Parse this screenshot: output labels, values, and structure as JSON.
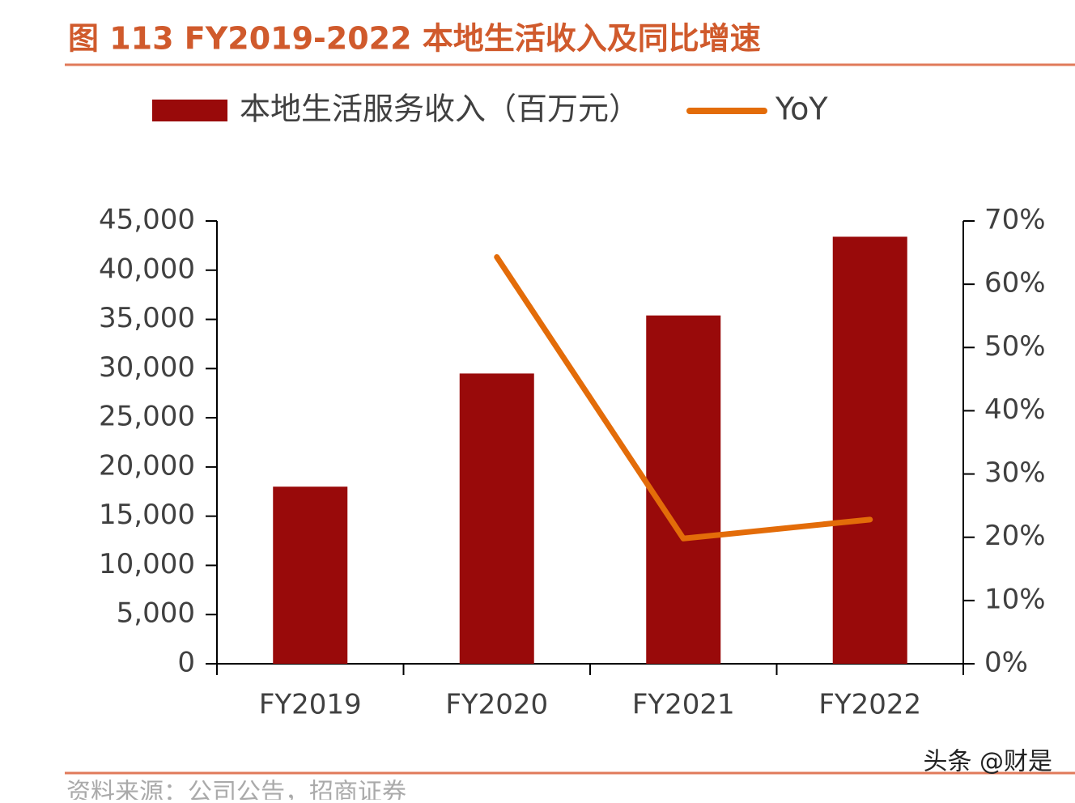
{
  "chart_data": {
    "type": "bar_line",
    "title": "图 113 FY2019-2022 本地生活收入及同比增速",
    "source": "资料来源：公司公告，招商证券",
    "watermark": "头条 @财是",
    "categories": [
      "FY2019",
      "FY2020",
      "FY2021",
      "FY2022"
    ],
    "series": [
      {
        "name": "本地生活服务收入（百万元）",
        "type": "bar",
        "color": "#990a0a",
        "values": [
          18000,
          29500,
          35400,
          43400
        ]
      },
      {
        "name": "YoY",
        "type": "line",
        "axis": "y2",
        "color": "#e36c09",
        "values": [
          null,
          64.3,
          19.8,
          22.8
        ]
      }
    ],
    "ylim": [
      0,
      45000
    ],
    "yticks": [
      0,
      {
        "value": 5000,
        "label": "5,000"
      },
      {
        "value": 10000,
        "label": "10,000"
      },
      {
        "value": 15000,
        "label": "15,000"
      },
      {
        "value": 20000,
        "label": "20,000"
      },
      {
        "value": 25000,
        "label": "25,000"
      },
      {
        "value": 30000,
        "label": "30,000"
      },
      {
        "value": 35000,
        "label": "35,000"
      },
      {
        "value": 40000,
        "label": "40,000"
      },
      {
        "value": 45000,
        "label": "45,000"
      }
    ],
    "y2lim": [
      0,
      70
    ],
    "y2ticks": [
      {
        "value": 0,
        "label": "0%"
      },
      {
        "value": 10,
        "label": "10%"
      },
      {
        "value": 20,
        "label": "20%"
      },
      {
        "value": 30,
        "label": "30%"
      },
      {
        "value": 40,
        "label": "40%"
      },
      {
        "value": 50,
        "label": "50%"
      },
      {
        "value": 60,
        "label": "60%"
      },
      {
        "value": 70,
        "label": "70%"
      }
    ]
  }
}
